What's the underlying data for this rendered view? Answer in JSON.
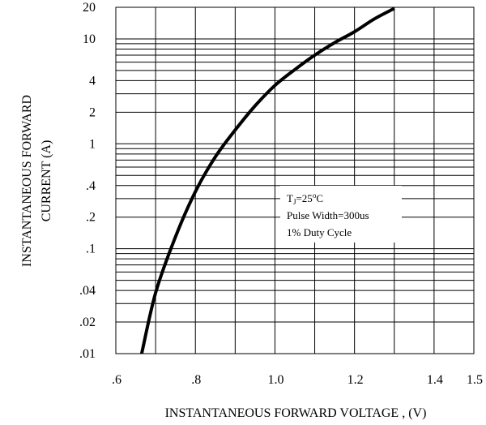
{
  "chart_data": {
    "type": "line",
    "title": "",
    "xlabel": "INSTANTANEOUS FORWARD VOLTAGE , (V)",
    "ylabel_lines": [
      "INSTANTANEOUS FORWARD",
      "CURRENT (A)"
    ],
    "xlim": [
      0.6,
      1.5
    ],
    "ylim": [
      0.01,
      20
    ],
    "yscale": "log",
    "grid": true,
    "x_ticks": [
      {
        "value": 0.6,
        "label": ".6"
      },
      {
        "value": 0.8,
        "label": ".8"
      },
      {
        "value": 1.0,
        "label": "1.0"
      },
      {
        "value": 1.2,
        "label": "1.2"
      },
      {
        "value": 1.4,
        "label": "1.4"
      },
      {
        "value": 1.5,
        "label": "1.5"
      }
    ],
    "y_ticks": [
      {
        "value": 0.01,
        "label": ".01"
      },
      {
        "value": 0.02,
        "label": ".02"
      },
      {
        "value": 0.04,
        "label": ".04"
      },
      {
        "value": 0.1,
        "label": ".1"
      },
      {
        "value": 0.2,
        "label": ".2"
      },
      {
        "value": 0.4,
        "label": ".4"
      },
      {
        "value": 1,
        "label": "1"
      },
      {
        "value": 2,
        "label": "2"
      },
      {
        "value": 4,
        "label": "4"
      },
      {
        "value": 10,
        "label": "10"
      },
      {
        "value": 20,
        "label": "20"
      }
    ],
    "series": [
      {
        "x": [
          0.665,
          0.7,
          0.75,
          0.8,
          0.85,
          0.9,
          0.95,
          1.0,
          1.05,
          1.1,
          1.15,
          1.2,
          1.25,
          1.3
        ],
        "y": [
          0.01,
          0.038,
          0.13,
          0.35,
          0.75,
          1.35,
          2.3,
          3.6,
          5.1,
          7.0,
          9.2,
          11.7,
          15.5,
          19.5
        ]
      }
    ],
    "annotation": {
      "line1_main": "T",
      "line1_sub": "J",
      "line1_rest": "=25",
      "line1_sup": "o",
      "line1_unit": "C",
      "line2": "Pulse Width=300us",
      "line3": "1% Duty Cycle"
    }
  }
}
